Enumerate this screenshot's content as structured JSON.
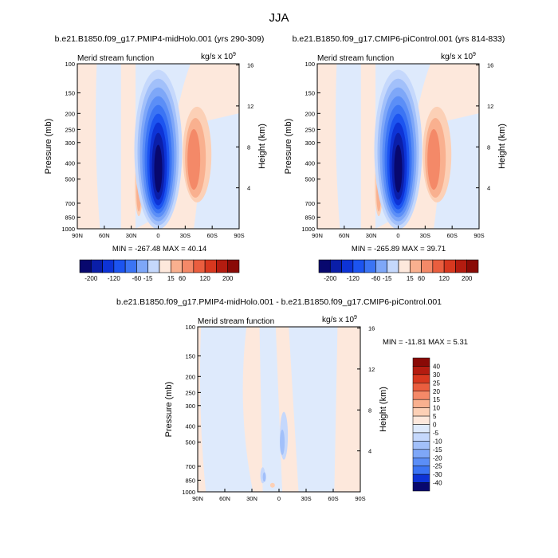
{
  "figure_title": "JJA",
  "panels": [
    {
      "run_title": "b.e21.B1850.f09_g17.PMIP4-midHolo.001 (yrs 290-309)",
      "var_label": "Merid stream function",
      "units_prefix": "kg/s x 10",
      "units_exp": "9",
      "stats": "MIN = -267.48  MAX = 40.14"
    },
    {
      "run_title": "b.e21.B1850.f09_g17.CMIP6-piControl.001 (yrs 814-833)",
      "var_label": "Merid stream function",
      "units_prefix": "kg/s x 10",
      "units_exp": "9",
      "stats": "MIN = -265.89  MAX = 39.71"
    },
    {
      "run_title": "b.e21.B1850.f09_g17.PMIP4-midHolo.001 - b.e21.B1850.f09_g17.CMIP6-piControl.001",
      "var_label": "Merid stream function",
      "units_prefix": "kg/s x 10",
      "units_exp": "9",
      "stats": "MIN = -11.81  MAX =   5.31"
    }
  ],
  "colors": {
    "ramp": [
      "#08086e",
      "#0a1ea8",
      "#0d33d6",
      "#1c54f0",
      "#3b74f4",
      "#5b8ef7",
      "#7ea7f8",
      "#a2c0fa",
      "#c5d8fc",
      "#deeafc",
      "#fde8dc",
      "#fcd0b6",
      "#f9b08f",
      "#f48968",
      "#ea5e3f",
      "#d8381f",
      "#b41c10",
      "#8a0a06"
    ],
    "neg_light": "#deeafc",
    "pos_light": "#fde8dc",
    "ocean_grey": "#ffffff"
  },
  "chart_data": [
    {
      "type": "heatmap",
      "panel": "PMIP4-midHolo",
      "xlabel": "",
      "ylabel": "Pressure (mb)",
      "ylabel_right": "Height (km)",
      "x_ticks": [
        "90N",
        "60N",
        "30N",
        "0",
        "30S",
        "60S",
        "90S"
      ],
      "y_ticks": [
        "100",
        "150",
        "200",
        "250",
        "300",
        "400",
        "500",
        "700",
        "850",
        "1000"
      ],
      "y_ticks_right": [
        "16",
        "12",
        "8",
        "4"
      ],
      "colorbar_labels": [
        "-200",
        "-120",
        "-60",
        "-15",
        "15",
        "60",
        "120",
        "200"
      ],
      "min": -267.48,
      "max": 40.14
    },
    {
      "type": "heatmap",
      "panel": "CMIP6-piControl",
      "xlabel": "",
      "ylabel": "Pressure (mb)",
      "ylabel_right": "Height (km)",
      "x_ticks": [
        "90N",
        "60N",
        "30N",
        "0",
        "30S",
        "60S",
        "90S"
      ],
      "y_ticks": [
        "100",
        "150",
        "200",
        "250",
        "300",
        "400",
        "500",
        "700",
        "850",
        "1000"
      ],
      "y_ticks_right": [
        "16",
        "12",
        "8",
        "4"
      ],
      "colorbar_labels": [
        "-200",
        "-120",
        "-60",
        "-15",
        "15",
        "60",
        "120",
        "200"
      ],
      "min": -265.89,
      "max": 39.71
    },
    {
      "type": "heatmap",
      "panel": "difference",
      "xlabel": "",
      "ylabel": "Pressure (mb)",
      "ylabel_right": "Height (km)",
      "x_ticks": [
        "90N",
        "60N",
        "30N",
        "0",
        "30S",
        "60S",
        "90S"
      ],
      "y_ticks": [
        "100",
        "150",
        "200",
        "250",
        "300",
        "400",
        "500",
        "700",
        "850",
        "1000"
      ],
      "y_ticks_right": [
        "16",
        "12",
        "8",
        "4"
      ],
      "colorbar_labels": [
        "40",
        "30",
        "25",
        "20",
        "15",
        "10",
        "5",
        "0",
        "-5",
        "-10",
        "-15",
        "-20",
        "-25",
        "-30",
        "-40"
      ],
      "min": -11.81,
      "max": 5.31
    }
  ]
}
